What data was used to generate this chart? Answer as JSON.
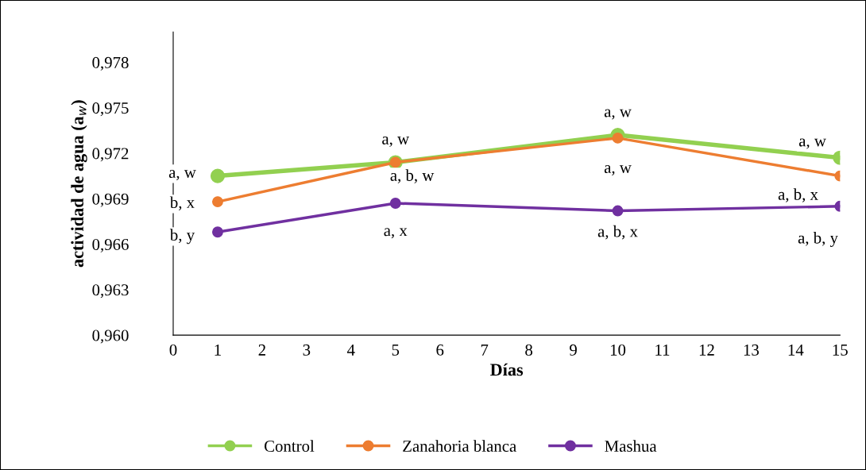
{
  "chart_data": {
    "type": "line",
    "xlabel": "Días",
    "ylabel": "actividad de agua (a$_{w}$)",
    "x": [
      1,
      5,
      10,
      15
    ],
    "series": [
      {
        "name": "Control",
        "color": "#92d050",
        "values": [
          0.9705,
          0.9714,
          0.9732,
          0.9717
        ]
      },
      {
        "name": "Zanahoria blanca",
        "color": "#ed7d31",
        "values": [
          0.9688,
          0.9714,
          0.973,
          0.9705
        ]
      },
      {
        "name": "Mashua",
        "color": "#7030a0",
        "values": [
          0.9668,
          0.9687,
          0.9682,
          0.9685
        ]
      }
    ],
    "xlim": [
      0,
      15
    ],
    "xticks": [
      0,
      1,
      2,
      3,
      4,
      5,
      6,
      7,
      8,
      9,
      10,
      11,
      12,
      13,
      14,
      15
    ],
    "ylim": [
      0.96,
      0.98
    ],
    "yticks": [
      {
        "value": 0.96,
        "label": "0,960"
      },
      {
        "value": 0.963,
        "label": "0,963"
      },
      {
        "value": 0.966,
        "label": "0,966"
      },
      {
        "value": 0.969,
        "label": "0,969"
      },
      {
        "value": 0.972,
        "label": "0,972"
      },
      {
        "value": 0.975,
        "label": "0,975"
      },
      {
        "value": 0.978,
        "label": "0,978"
      }
    ],
    "annotations": [
      {
        "text": "a, w",
        "x": 1,
        "y": 0.9705
      },
      {
        "text": "b, x",
        "x": 1,
        "y": 0.9688
      },
      {
        "text": "b, y",
        "x": 1,
        "y": 0.9668
      },
      {
        "text": "a, w",
        "x": 5,
        "y": 0.9714
      },
      {
        "text": "a, b, w",
        "x": 5,
        "y": 0.9687
      },
      {
        "text": "a, x",
        "x": 5,
        "y": 0.9687
      },
      {
        "text": "a, w",
        "x": 10,
        "y": 0.9732
      },
      {
        "text": "a, w",
        "x": 10,
        "y": 0.973
      },
      {
        "text": "a, b, x",
        "x": 10,
        "y": 0.9682
      },
      {
        "text": "a, w",
        "x": 15,
        "y": 0.9717
      },
      {
        "text": "a, b, x",
        "x": 15,
        "y": 0.9705
      },
      {
        "text": "a, b, y",
        "x": 15,
        "y": 0.9685
      }
    ],
    "grid": false,
    "legend": "bottom",
    "marker": "circle",
    "line_style": "solid"
  }
}
